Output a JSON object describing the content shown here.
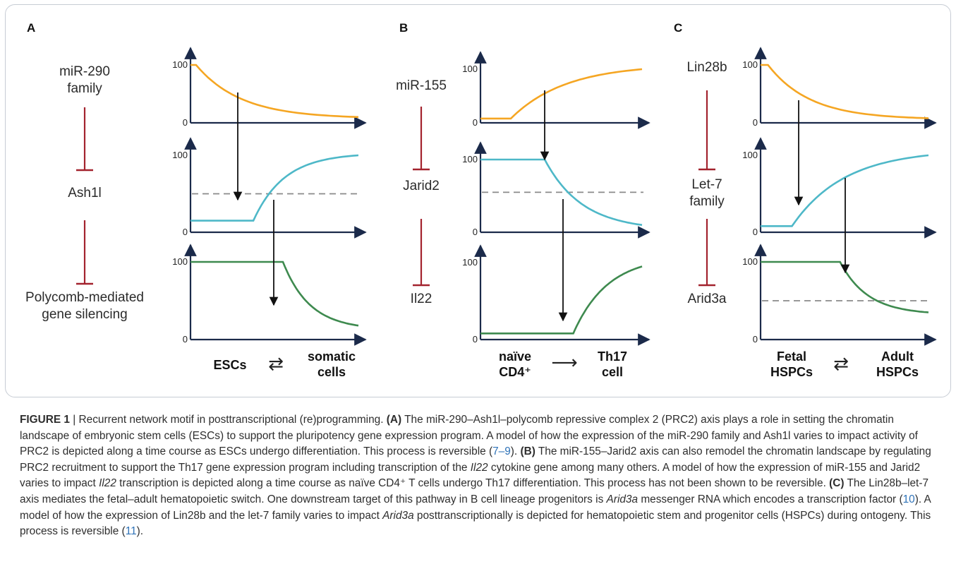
{
  "panels": [
    {
      "letter": "A",
      "nodes": [
        "miR-290\nfamily",
        "Ash1l",
        "Polycomb-mediated\ngene silencing"
      ],
      "bottom_left": "ESCs",
      "bottom_symbol": "⇄",
      "bottom_right": "somatic\ncells",
      "y_ticks": [
        "100",
        "0"
      ]
    },
    {
      "letter": "B",
      "nodes": [
        "miR-155",
        "Jarid2",
        "Il22"
      ],
      "bottom_left": "naïve\nCD4⁺",
      "bottom_symbol": "⟶",
      "bottom_right": "Th17\ncell",
      "y_ticks": [
        "100",
        "0"
      ]
    },
    {
      "letter": "C",
      "nodes": [
        "Lin28b",
        "Let-7\nfamily",
        "Arid3a"
      ],
      "bottom_left": "Fetal\nHSPCs",
      "bottom_symbol": "⇄",
      "bottom_right": "Adult\nHSPCs",
      "y_ticks": [
        "100",
        "0"
      ]
    }
  ],
  "colors": {
    "orange": "#f5a623",
    "blue": "#4eb8c8",
    "green": "#3e8a4f",
    "inhibit": "#a3232e",
    "axis": "#1b2a4a",
    "dashed": "#8a8a8a"
  },
  "chart_data": [
    {
      "type": "line",
      "panel": "A",
      "row": 1,
      "series": [
        {
          "color": "orange",
          "shape": "decay",
          "start": 100,
          "end": 10
        }
      ],
      "ylim": [
        0,
        100
      ]
    },
    {
      "type": "line",
      "panel": "A",
      "row": 2,
      "series": [
        {
          "color": "blue",
          "shape": "rise",
          "start": 15,
          "end": 100
        }
      ],
      "threshold": 50,
      "ylim": [
        0,
        100
      ]
    },
    {
      "type": "line",
      "panel": "A",
      "row": 3,
      "series": [
        {
          "color": "green",
          "shape": "decay",
          "start": 100,
          "end": 18
        }
      ],
      "ylim": [
        0,
        100
      ]
    },
    {
      "type": "line",
      "panel": "B",
      "row": 1,
      "series": [
        {
          "color": "orange",
          "shape": "rise",
          "start": 8,
          "end": 100
        }
      ],
      "ylim": [
        0,
        100
      ]
    },
    {
      "type": "line",
      "panel": "B",
      "row": 2,
      "series": [
        {
          "color": "blue",
          "shape": "decay",
          "start": 100,
          "end": 10
        }
      ],
      "threshold": 55,
      "ylim": [
        0,
        100
      ]
    },
    {
      "type": "line",
      "panel": "B",
      "row": 3,
      "series": [
        {
          "color": "green",
          "shape": "rise",
          "start": 8,
          "end": 95
        }
      ],
      "ylim": [
        0,
        100
      ]
    },
    {
      "type": "line",
      "panel": "C",
      "row": 1,
      "series": [
        {
          "color": "orange",
          "shape": "decay",
          "start": 100,
          "end": 8
        }
      ],
      "ylim": [
        0,
        100
      ]
    },
    {
      "type": "line",
      "panel": "C",
      "row": 2,
      "series": [
        {
          "color": "blue",
          "shape": "rise",
          "start": 8,
          "end": 100
        }
      ],
      "ylim": [
        0,
        100
      ]
    },
    {
      "type": "line",
      "panel": "C",
      "row": 3,
      "series": [
        {
          "color": "green",
          "shape": "decay",
          "start": 100,
          "end": 35
        }
      ],
      "threshold": 50,
      "ylim": [
        0,
        100
      ]
    }
  ],
  "caption": {
    "fig_label": "FIGURE 1",
    "sep": " | ",
    "title": "Recurrent network motif in posttranscriptional (re)programming.",
    "a_label": "(A)",
    "a_text1": "The miR-290–Ash1l–polycomb repressive complex 2 (PRC2) axis plays a role in setting the chromatin landscape of embryonic stem cells (ESCs) to support the pluripotency gene expression program. A model of how the expression of the miR-290 family and Ash1l varies to impact activity of PRC2 is depicted along a time course as ESCs undergo differentiation. This process is reversible (",
    "a_ref": "7–9",
    "a_text2": ").",
    "b_label": "(B)",
    "b_text1": "The miR-155–Jarid2 axis can also remodel the chromatin landscape by regulating PRC2 recruitment to support the Th17 gene expression program including transcription of the ",
    "b_gene1": "Il22",
    "b_text2": " cytokine gene among many others. A model of how the expression of miR-155 and Jarid2 varies to impact ",
    "b_gene2": "Il22",
    "b_text3": " transcription is depicted along a time course as naïve CD4⁺ T cells undergo Th17 differentiation. This process has not been shown to be reversible.",
    "c_label": "(C)",
    "c_text1": "The Lin28b–let-7 axis mediates the fetal–adult hematopoietic switch. One downstream target of this pathway in B cell lineage progenitors is ",
    "c_gene1": "Arid3a",
    "c_text2": " messenger RNA which encodes a transcription factor (",
    "c_ref1": "10",
    "c_text3": "). A model of how the expression of Lin28b and the let-7 family varies to impact ",
    "c_gene2": "Arid3a",
    "c_text4": " posttranscriptionally is depicted for hematopoietic stem and progenitor cells (HSPCs) during ontogeny. This process is reversible (",
    "c_ref2": "11",
    "c_text5": ")."
  }
}
